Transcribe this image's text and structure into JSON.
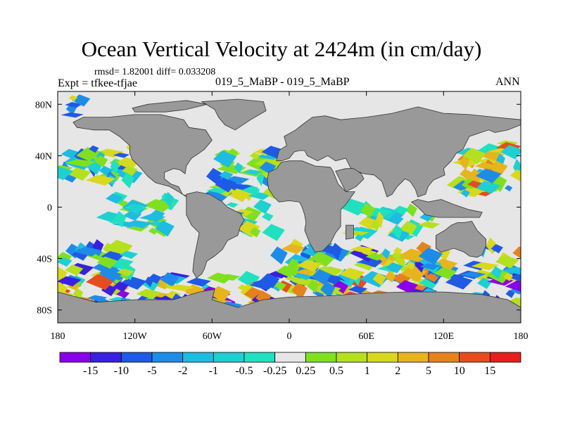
{
  "header": {
    "title": "Ocean Vertical Velocity at 2424m (in cm/day)",
    "stats": "rmsd= 1.82001 diff= 0.033208",
    "expt": "Expt = tfkee-tfjae",
    "case": "019_5_MaBP - 019_5_MaBP",
    "season": "ANN"
  },
  "chart_data": {
    "type": "heatmap",
    "title": "Ocean Vertical Velocity at 2424m (in cm/day)",
    "xlabel": "",
    "ylabel": "",
    "xlim": [
      -180,
      180
    ],
    "ylim": [
      -90,
      90
    ],
    "x_ticks": [
      {
        "value": -180,
        "label": "180"
      },
      {
        "value": -120,
        "label": "120W"
      },
      {
        "value": -60,
        "label": "60W"
      },
      {
        "value": 0,
        "label": "0"
      },
      {
        "value": 60,
        "label": "60E"
      },
      {
        "value": 120,
        "label": "120E"
      },
      {
        "value": 180,
        "label": "180"
      }
    ],
    "y_ticks": [
      {
        "value": 80,
        "label": "80N"
      },
      {
        "value": 40,
        "label": "40N"
      },
      {
        "value": 0,
        "label": "0"
      },
      {
        "value": -40,
        "label": "40S"
      },
      {
        "value": -80,
        "label": "80S"
      }
    ],
    "colorbar": {
      "labels": [
        "-15",
        "-10",
        "-5",
        "-2",
        "-1",
        "-0.5",
        "-0.25",
        "0.25",
        "0.5",
        "1",
        "2",
        "5",
        "10",
        "15"
      ],
      "colors": [
        "#8a00e6",
        "#3a1fe0",
        "#1e5ae6",
        "#1e8ce6",
        "#1ebce0",
        "#1ed0d0",
        "#20e0c0",
        "#e6e6e6",
        "#80e020",
        "#b4e01e",
        "#d8d81e",
        "#e6b41e",
        "#e6821e",
        "#e64c1e",
        "#e61e1e"
      ]
    },
    "land_color": "#999999",
    "background_value_color": "#e6e6e6"
  }
}
